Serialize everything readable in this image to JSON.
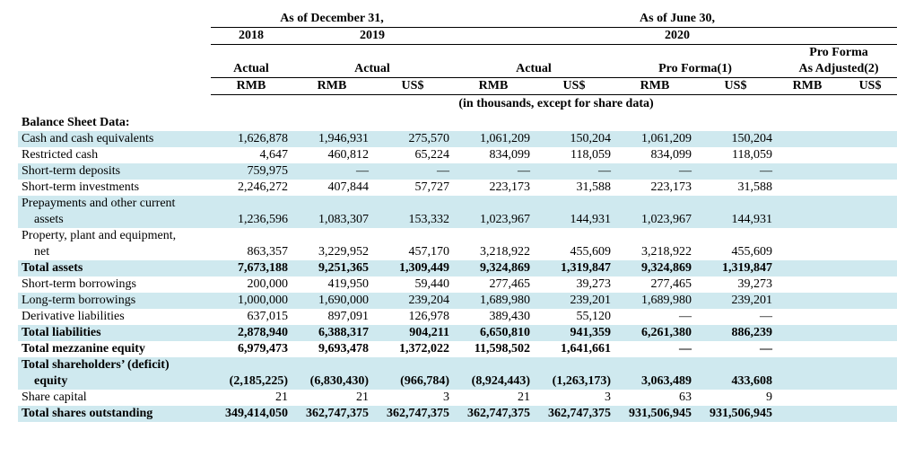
{
  "headers": {
    "top_left": "As of December 31,",
    "top_right": "As of June 30,",
    "y2018": "2018",
    "y2019": "2019",
    "y2020": "2020",
    "actual": "Actual",
    "proforma": "Pro Forma(1)",
    "proforma_adj_l1": "Pro Forma",
    "proforma_adj_l2": "As Adjusted(2)",
    "rmb": "RMB",
    "uss": "US$",
    "subnote": "(in thousands, except for share data)"
  },
  "section_title": "Balance Sheet Data:",
  "rows": [
    {
      "label": "Cash and cash equivalents",
      "bold": false,
      "stripe": true,
      "indent": false,
      "v": [
        "1,626,878",
        "1,946,931",
        "275,570",
        "1,061,209",
        "150,204",
        "1,061,209",
        "150,204",
        "",
        ""
      ]
    },
    {
      "label": "Restricted cash",
      "bold": false,
      "stripe": false,
      "indent": false,
      "v": [
        "4,647",
        "460,812",
        "65,224",
        "834,099",
        "118,059",
        "834,099",
        "118,059",
        "",
        ""
      ]
    },
    {
      "label": "Short-term deposits",
      "bold": false,
      "stripe": true,
      "indent": false,
      "v": [
        "759,975",
        "—",
        "—",
        "—",
        "—",
        "—",
        "—",
        "",
        ""
      ]
    },
    {
      "label": "Short-term investments",
      "bold": false,
      "stripe": false,
      "indent": false,
      "v": [
        "2,246,272",
        "407,844",
        "57,727",
        "223,173",
        "31,588",
        "223,173",
        "31,588",
        "",
        ""
      ]
    },
    {
      "label": "Prepayments and other current",
      "label2": "assets",
      "bold": false,
      "stripe": true,
      "indent": false,
      "v": [
        "1,236,596",
        "1,083,307",
        "153,332",
        "1,023,967",
        "144,931",
        "1,023,967",
        "144,931",
        "",
        ""
      ]
    },
    {
      "label": "Property, plant and equipment,",
      "label2": "net",
      "bold": false,
      "stripe": false,
      "indent": false,
      "v": [
        "863,357",
        "3,229,952",
        "457,170",
        "3,218,922",
        "455,609",
        "3,218,922",
        "455,609",
        "",
        ""
      ]
    },
    {
      "label": "Total assets",
      "bold": true,
      "stripe": true,
      "indent": false,
      "v": [
        "7,673,188",
        "9,251,365",
        "1,309,449",
        "9,324,869",
        "1,319,847",
        "9,324,869",
        "1,319,847",
        "",
        ""
      ]
    },
    {
      "label": "Short-term borrowings",
      "bold": false,
      "stripe": false,
      "indent": false,
      "v": [
        "200,000",
        "419,950",
        "59,440",
        "277,465",
        "39,273",
        "277,465",
        "39,273",
        "",
        ""
      ]
    },
    {
      "label": "Long-term borrowings",
      "bold": false,
      "stripe": true,
      "indent": false,
      "v": [
        "1,000,000",
        "1,690,000",
        "239,204",
        "1,689,980",
        "239,201",
        "1,689,980",
        "239,201",
        "",
        ""
      ]
    },
    {
      "label": "Derivative liabilities",
      "bold": false,
      "stripe": false,
      "indent": false,
      "v": [
        "637,015",
        "897,091",
        "126,978",
        "389,430",
        "55,120",
        "—",
        "—",
        "",
        ""
      ]
    },
    {
      "label": "Total liabilities",
      "bold": true,
      "stripe": true,
      "indent": false,
      "v": [
        "2,878,940",
        "6,388,317",
        "904,211",
        "6,650,810",
        "941,359",
        "6,261,380",
        "886,239",
        "",
        ""
      ]
    },
    {
      "label": "Total mezzanine equity",
      "bold": true,
      "stripe": false,
      "indent": false,
      "v": [
        "6,979,473",
        "9,693,478",
        "1,372,022",
        "11,598,502",
        "1,641,661",
        "—",
        "—",
        "",
        ""
      ]
    },
    {
      "label": "Total shareholders’ (deficit)",
      "label2": "equity",
      "bold": true,
      "stripe": true,
      "indent": false,
      "v": [
        "(2,185,225)",
        "(6,830,430)",
        "(966,784)",
        "(8,924,443)",
        "(1,263,173)",
        "3,063,489",
        "433,608",
        "",
        ""
      ]
    },
    {
      "label": "Share capital",
      "bold": false,
      "stripe": false,
      "indent": false,
      "v": [
        "21",
        "21",
        "3",
        "21",
        "3",
        "63",
        "9",
        "",
        ""
      ]
    },
    {
      "label": "Total shares outstanding",
      "bold": true,
      "stripe": true,
      "indent": false,
      "v": [
        "349,414,050",
        "362,747,375",
        "362,747,375",
        "362,747,375",
        "362,747,375",
        "931,506,945",
        "931,506,945",
        "",
        ""
      ]
    }
  ]
}
